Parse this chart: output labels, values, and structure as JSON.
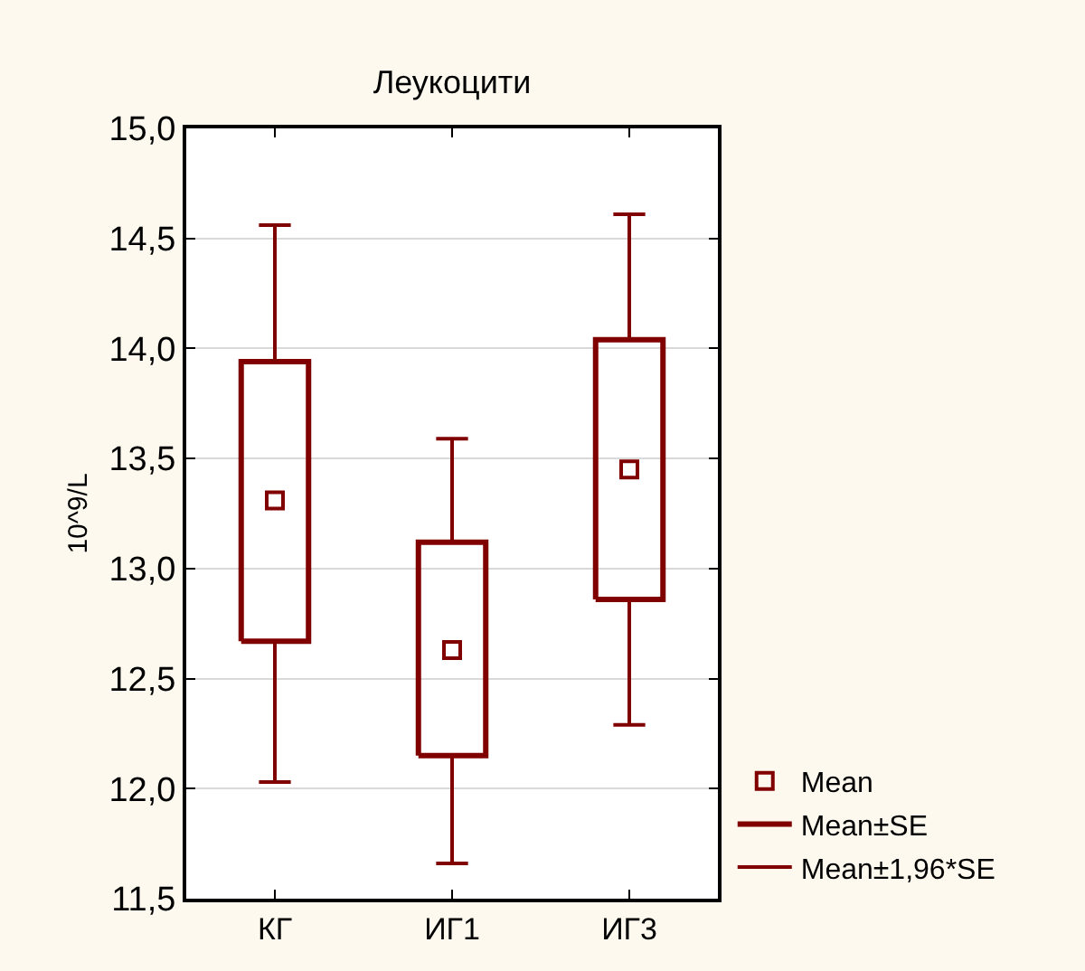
{
  "chart_data": {
    "type": "box",
    "title": "Леукоцити",
    "ylabel": "10^9/L",
    "categories": [
      "КГ",
      "ИГ1",
      "ИГ3"
    ],
    "color": "#800000",
    "boxes": [
      {
        "low": 12.03,
        "q1": 12.67,
        "q3": 13.94,
        "high": 14.56,
        "mean": 13.31
      },
      {
        "low": 11.66,
        "q1": 12.15,
        "q3": 13.12,
        "high": 13.59,
        "mean": 12.63
      },
      {
        "low": 12.29,
        "q1": 12.86,
        "q3": 14.04,
        "high": 14.61,
        "mean": 13.45
      }
    ],
    "ylim": [
      11.5,
      15.0
    ],
    "yticks": [
      {
        "value": 11.5,
        "label": "11,5"
      },
      {
        "value": 12.0,
        "label": "12,0"
      },
      {
        "value": 12.5,
        "label": "12,5"
      },
      {
        "value": 13.0,
        "label": "13,0"
      },
      {
        "value": 13.5,
        "label": "13,5"
      },
      {
        "value": 14.0,
        "label": "14,0"
      },
      {
        "value": 14.5,
        "label": "14,5"
      },
      {
        "value": 15.0,
        "label": "15,0"
      }
    ],
    "grid": "y",
    "marker": "square",
    "annotations": [
      "Mean",
      "Mean±SE",
      "Mean±1,96*SE"
    ]
  }
}
